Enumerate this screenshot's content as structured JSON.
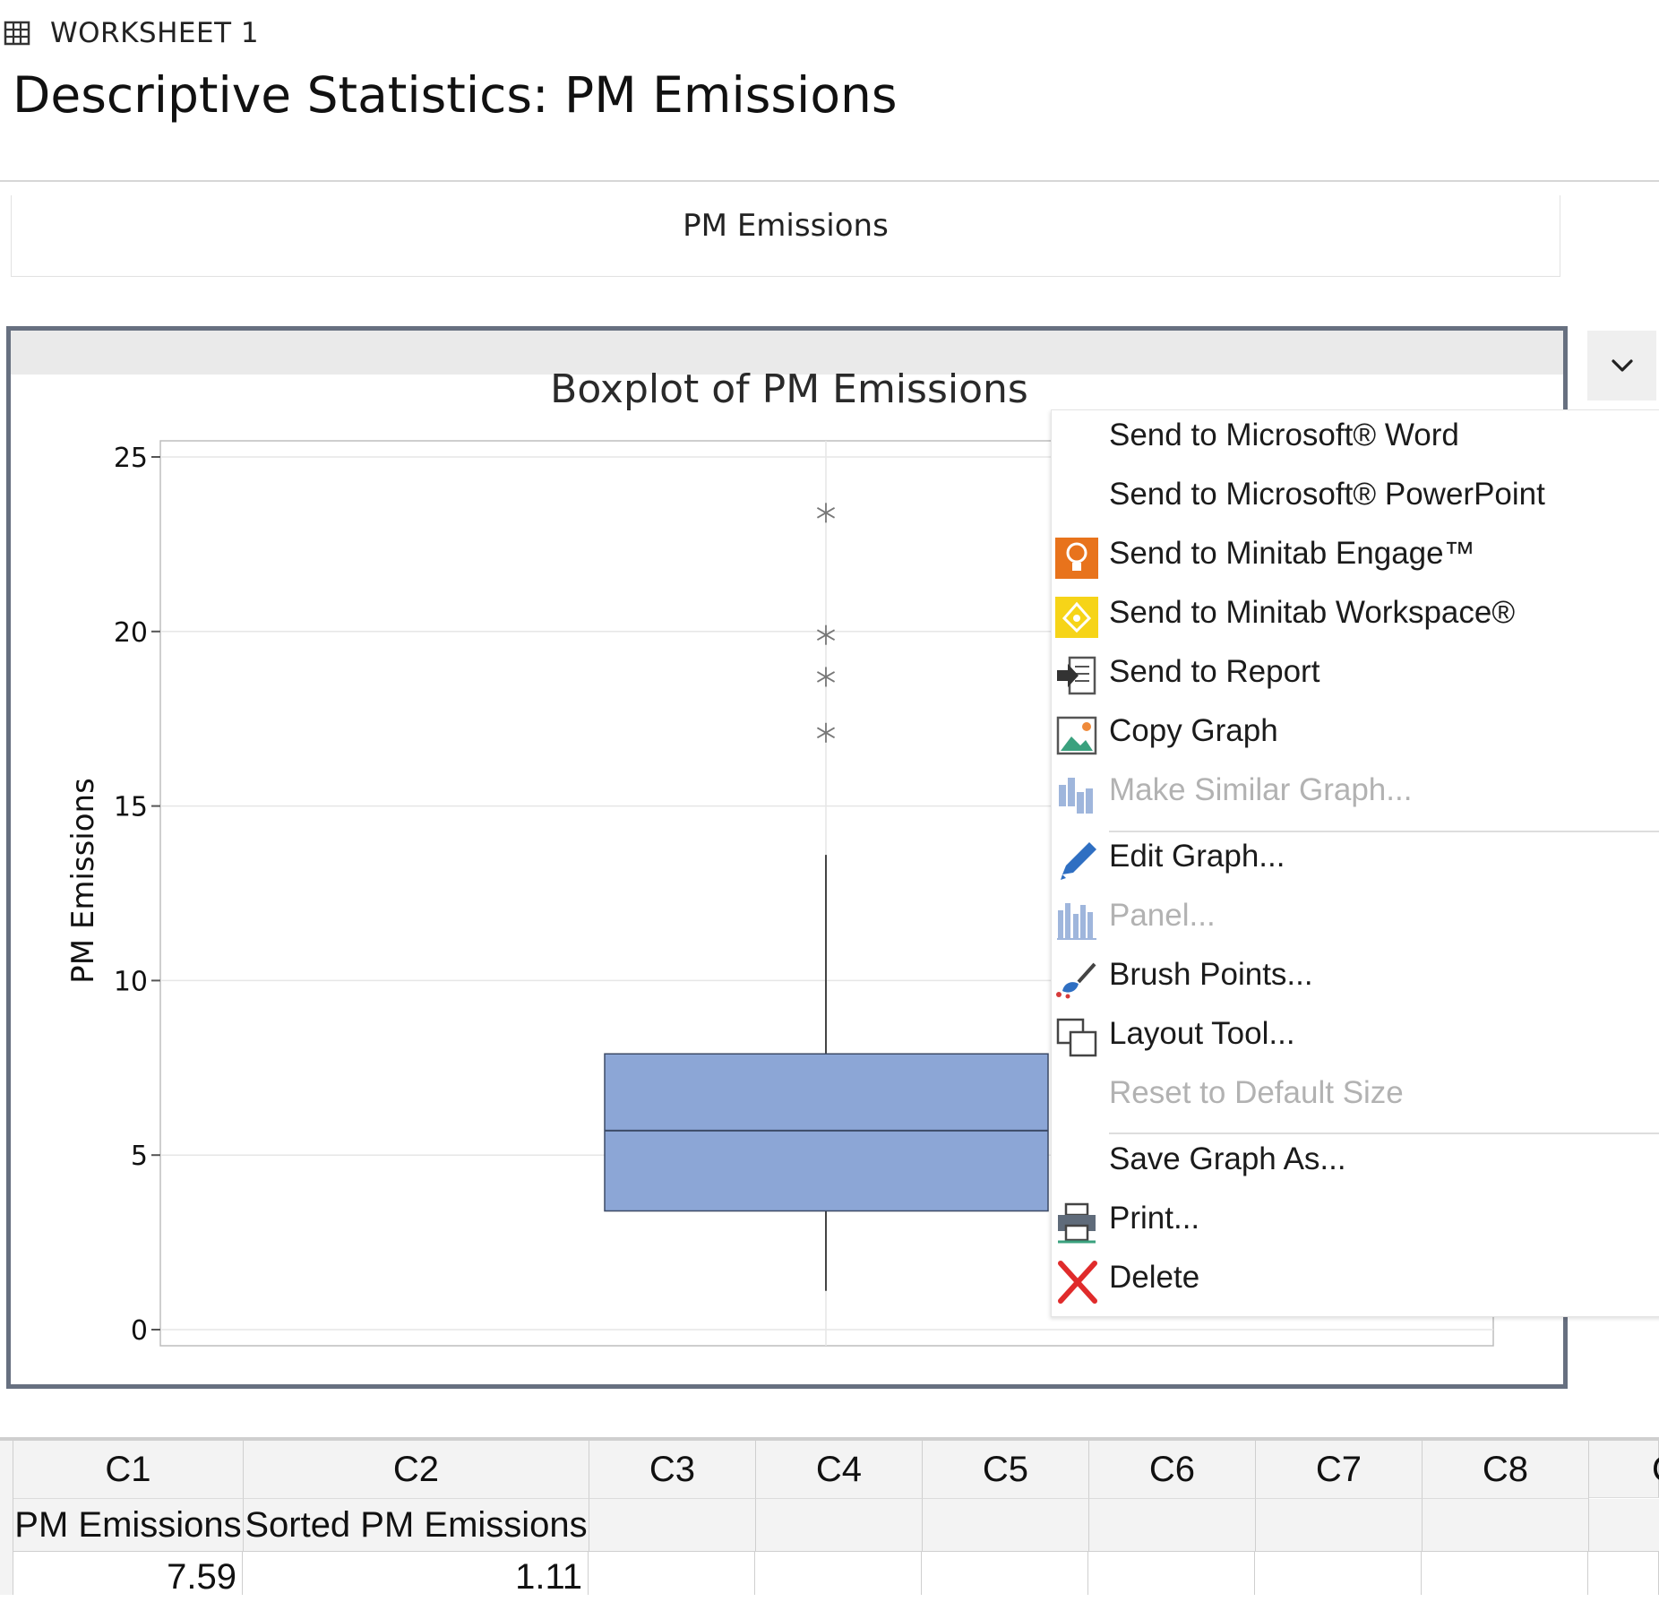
{
  "worksheet": {
    "label": "WORKSHEET 1",
    "icon": "grid-icon"
  },
  "title": "Descriptive Statistics: PM Emissions",
  "subtitle": "PM Emissions",
  "chart_data": {
    "type": "boxplot",
    "title": "Boxplot of PM Emissions",
    "xlabel": "",
    "ylabel": "PM Emissions",
    "ylim": [
      0,
      25
    ],
    "yticks": [
      0,
      5,
      10,
      15,
      20,
      25
    ],
    "grid": true,
    "box_color": "#8CA6D6",
    "series": [
      {
        "name": "PM Emissions",
        "q1": 3.4,
        "median": 5.7,
        "q3": 7.9,
        "whisker_low": 1.11,
        "whisker_high": 13.6,
        "outliers": [
          23.4,
          19.9,
          18.7,
          17.1
        ]
      }
    ]
  },
  "dropdown": {
    "icon": "chevron-down-icon"
  },
  "menu": {
    "items": [
      {
        "label": "Send to Microsoft® Word",
        "icon": "",
        "disabled": false
      },
      {
        "label": "Send to Microsoft® PowerPoint",
        "icon": "",
        "disabled": false
      },
      {
        "label": "Send to Minitab Engage™",
        "icon": "engage-icon",
        "disabled": false
      },
      {
        "label": "Send to Minitab Workspace®",
        "icon": "workspace-icon",
        "disabled": false
      },
      {
        "label": "Send to Report",
        "icon": "report-icon",
        "disabled": false
      },
      {
        "label": "Copy Graph",
        "icon": "copy-graph-icon",
        "disabled": false
      },
      {
        "label": "Make Similar Graph...",
        "icon": "similar-graph-icon",
        "disabled": true
      },
      {
        "label": "Edit Graph...",
        "icon": "pencil-icon",
        "disabled": false
      },
      {
        "label": "Panel...",
        "icon": "panel-icon",
        "disabled": true
      },
      {
        "label": "Brush Points...",
        "icon": "brush-icon",
        "disabled": false
      },
      {
        "label": "Layout Tool...",
        "icon": "layout-icon",
        "disabled": false
      },
      {
        "label": "Reset to Default Size",
        "icon": "",
        "disabled": true
      },
      {
        "label": "Save Graph As...",
        "icon": "",
        "disabled": false
      },
      {
        "label": "Print...",
        "icon": "printer-icon",
        "disabled": false
      },
      {
        "label": "Delete",
        "icon": "delete-icon",
        "disabled": false
      }
    ]
  },
  "worksheet_grid": {
    "columns": [
      "C1",
      "C2",
      "C3",
      "C4",
      "C5",
      "C6",
      "C7",
      "C8",
      "C"
    ],
    "names": [
      "PM Emissions",
      "Sorted PM Emissions",
      "",
      "",
      "",
      "",
      "",
      "",
      ""
    ],
    "row1": [
      "7.59",
      "1.11",
      "",
      "",
      "",
      "",
      "",
      "",
      ""
    ]
  }
}
